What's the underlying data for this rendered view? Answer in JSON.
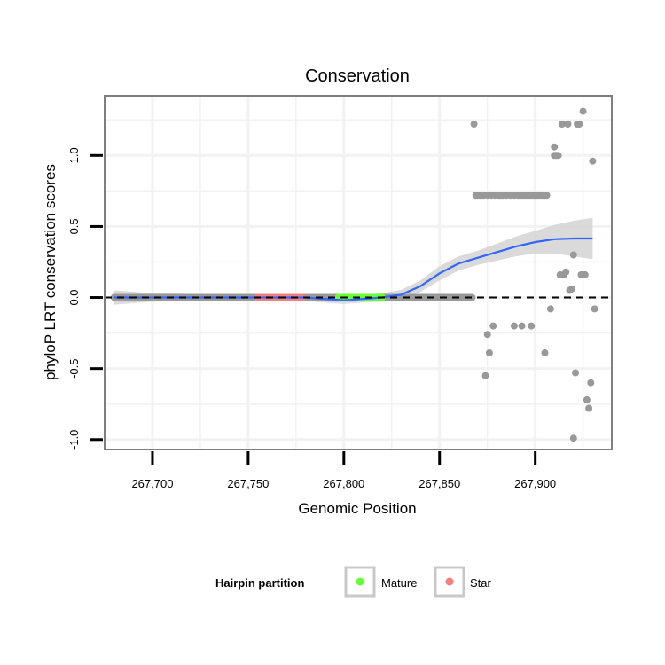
{
  "chart_data": {
    "type": "scatter",
    "title": "Conservation",
    "xlabel": "Genomic Position",
    "ylabel": "phyloP LRT conservation scores",
    "xlim": [
      267675,
      267940
    ],
    "ylim": [
      -1.07,
      1.42
    ],
    "x_ticks": [
      267700,
      267750,
      267800,
      267850,
      267900
    ],
    "x_tick_labels": [
      "267,700",
      "267,750",
      "267,800",
      "267,850",
      "267,900"
    ],
    "y_ticks": [
      -1.0,
      -0.5,
      0.0,
      0.5,
      1.0
    ],
    "y_tick_labels": [
      "-1.0",
      "-0.5",
      "0.0",
      "0.5",
      "1.0"
    ],
    "reference_line_y": 0,
    "colors": {
      "points": "#999999",
      "smooth": "#3366ff",
      "ribbon": "#d3d3d3",
      "mature": "#66ff33",
      "star": "#f08080",
      "panel_border": "#7f7f7f",
      "grid": "#f2f2f2"
    },
    "legend": {
      "title": "Hairpin partition",
      "position": "bottom",
      "entries": [
        {
          "label": "Mature",
          "color": "#66ff33"
        },
        {
          "label": "Star",
          "color": "#f08080"
        }
      ]
    },
    "zero_segments": [
      {
        "name": "baseline",
        "x0": 267680,
        "x1": 267867,
        "y": 0,
        "color": "#999999"
      },
      {
        "name": "star",
        "x0": 267755,
        "x1": 267778,
        "y": 0,
        "color": "#f08080"
      },
      {
        "name": "mature",
        "x0": 267797,
        "x1": 267820,
        "y": 0,
        "color": "#66ff33"
      }
    ],
    "points": [
      {
        "x": 267868,
        "y": 1.22
      },
      {
        "x": 267869,
        "y": 0.72
      },
      {
        "x": 267870,
        "y": 0.72
      },
      {
        "x": 267871,
        "y": 0.72
      },
      {
        "x": 267872,
        "y": 0.72
      },
      {
        "x": 267873,
        "y": 0.72
      },
      {
        "x": 267875,
        "y": 0.72
      },
      {
        "x": 267877,
        "y": 0.72
      },
      {
        "x": 267879,
        "y": 0.72
      },
      {
        "x": 267881,
        "y": 0.72
      },
      {
        "x": 267882,
        "y": 0.72
      },
      {
        "x": 267883,
        "y": 0.72
      },
      {
        "x": 267885,
        "y": 0.72
      },
      {
        "x": 267887,
        "y": 0.72
      },
      {
        "x": 267889,
        "y": 0.72
      },
      {
        "x": 267891,
        "y": 0.72
      },
      {
        "x": 267892,
        "y": 0.72
      },
      {
        "x": 267893,
        "y": 0.72
      },
      {
        "x": 267894,
        "y": 0.72
      },
      {
        "x": 267895,
        "y": 0.72
      },
      {
        "x": 267896,
        "y": 0.72
      },
      {
        "x": 267897,
        "y": 0.72
      },
      {
        "x": 267898,
        "y": 0.72
      },
      {
        "x": 267899,
        "y": 0.72
      },
      {
        "x": 267900,
        "y": 0.72
      },
      {
        "x": 267901,
        "y": 0.72
      },
      {
        "x": 267902,
        "y": 0.72
      },
      {
        "x": 267903,
        "y": 0.72
      },
      {
        "x": 267904,
        "y": 0.72
      },
      {
        "x": 267905,
        "y": 0.72
      },
      {
        "x": 267906,
        "y": 0.72
      },
      {
        "x": 267874,
        "y": -0.55
      },
      {
        "x": 267875,
        "y": -0.26
      },
      {
        "x": 267876,
        "y": -0.39
      },
      {
        "x": 267878,
        "y": -0.2
      },
      {
        "x": 267889,
        "y": -0.2
      },
      {
        "x": 267893,
        "y": -0.2
      },
      {
        "x": 267898,
        "y": -0.2
      },
      {
        "x": 267905,
        "y": -0.39
      },
      {
        "x": 267908,
        "y": -0.08
      },
      {
        "x": 267910,
        "y": 1.06
      },
      {
        "x": 267910,
        "y": 1.0
      },
      {
        "x": 267911,
        "y": 1.0
      },
      {
        "x": 267912,
        "y": 1.0
      },
      {
        "x": 267913,
        "y": 0.16
      },
      {
        "x": 267914,
        "y": 1.22
      },
      {
        "x": 267915,
        "y": 0.16
      },
      {
        "x": 267916,
        "y": 0.18
      },
      {
        "x": 267917,
        "y": 1.22
      },
      {
        "x": 267918,
        "y": 0.05
      },
      {
        "x": 267919,
        "y": 0.06
      },
      {
        "x": 267920,
        "y": -0.99
      },
      {
        "x": 267920,
        "y": 0.3
      },
      {
        "x": 267921,
        "y": -0.53
      },
      {
        "x": 267922,
        "y": 1.22
      },
      {
        "x": 267923,
        "y": 1.22
      },
      {
        "x": 267924,
        "y": 0.16
      },
      {
        "x": 267925,
        "y": 1.31
      },
      {
        "x": 267926,
        "y": 0.16
      },
      {
        "x": 267927,
        "y": -0.72
      },
      {
        "x": 267928,
        "y": -0.78
      },
      {
        "x": 267929,
        "y": -0.6
      },
      {
        "x": 267930,
        "y": 0.96
      },
      {
        "x": 267931,
        "y": -0.08
      }
    ],
    "smooth": [
      {
        "x": 267680,
        "y": 0.0,
        "lo": -0.05,
        "hi": 0.05
      },
      {
        "x": 267700,
        "y": 0.0,
        "lo": -0.03,
        "hi": 0.03
      },
      {
        "x": 267720,
        "y": 0.0,
        "lo": -0.025,
        "hi": 0.025
      },
      {
        "x": 267740,
        "y": 0.0,
        "lo": -0.025,
        "hi": 0.025
      },
      {
        "x": 267760,
        "y": 0.0,
        "lo": -0.025,
        "hi": 0.025
      },
      {
        "x": 267780,
        "y": 0.0,
        "lo": -0.025,
        "hi": 0.025
      },
      {
        "x": 267790,
        "y": -0.01,
        "lo": -0.035,
        "hi": 0.015
      },
      {
        "x": 267800,
        "y": -0.02,
        "lo": -0.045,
        "hi": 0.005
      },
      {
        "x": 267810,
        "y": -0.01,
        "lo": -0.035,
        "hi": 0.015
      },
      {
        "x": 267820,
        "y": 0.0,
        "lo": -0.03,
        "hi": 0.03
      },
      {
        "x": 267830,
        "y": 0.02,
        "lo": -0.015,
        "hi": 0.055
      },
      {
        "x": 267840,
        "y": 0.08,
        "lo": 0.04,
        "hi": 0.12
      },
      {
        "x": 267850,
        "y": 0.17,
        "lo": 0.12,
        "hi": 0.22
      },
      {
        "x": 267860,
        "y": 0.24,
        "lo": 0.19,
        "hi": 0.29
      },
      {
        "x": 267870,
        "y": 0.28,
        "lo": 0.23,
        "hi": 0.33
      },
      {
        "x": 267880,
        "y": 0.32,
        "lo": 0.26,
        "hi": 0.38
      },
      {
        "x": 267890,
        "y": 0.36,
        "lo": 0.29,
        "hi": 0.43
      },
      {
        "x": 267900,
        "y": 0.39,
        "lo": 0.31,
        "hi": 0.47
      },
      {
        "x": 267910,
        "y": 0.41,
        "lo": 0.31,
        "hi": 0.51
      },
      {
        "x": 267920,
        "y": 0.415,
        "lo": 0.29,
        "hi": 0.54
      },
      {
        "x": 267930,
        "y": 0.415,
        "lo": 0.27,
        "hi": 0.56
      }
    ]
  }
}
